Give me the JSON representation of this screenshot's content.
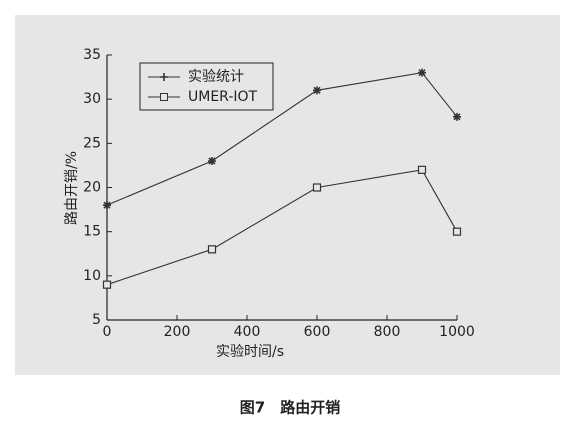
{
  "chart_data": {
    "type": "line",
    "caption": "图7　路由开销",
    "x_label": "实验时间/s",
    "y_label": "路由开销/%",
    "x": [
      0,
      300,
      600,
      900,
      1000
    ],
    "series": [
      {
        "name": "实验统计",
        "color": "#333333",
        "marker": "star",
        "values": [
          18,
          23,
          31,
          33,
          28
        ]
      },
      {
        "name": "UMER-IOT",
        "color": "#333333",
        "marker": "square",
        "values": [
          9,
          13,
          20,
          22,
          15
        ]
      }
    ],
    "xlim": [
      0,
      1000
    ],
    "xticks": [
      0,
      200,
      400,
      600,
      800,
      1000
    ],
    "ylim": [
      5,
      35
    ],
    "yticks": [
      5,
      10,
      15,
      20,
      25,
      30,
      35
    ],
    "legend": "upper left"
  }
}
